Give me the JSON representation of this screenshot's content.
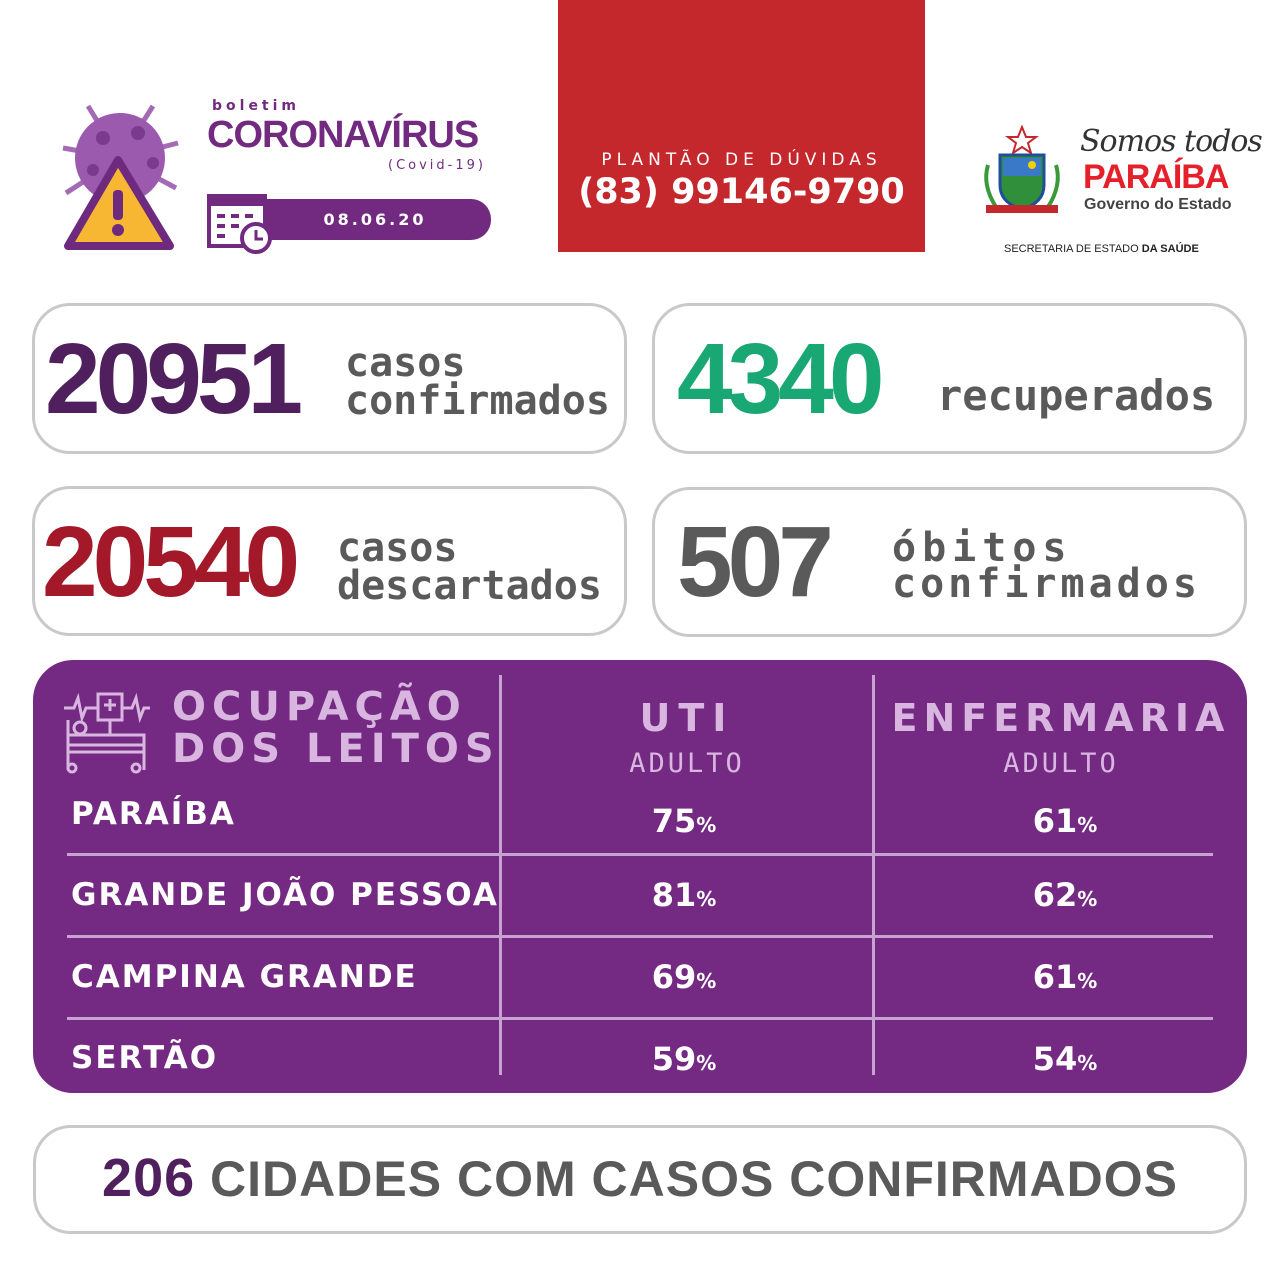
{
  "header": {
    "kicker": "boletim",
    "title": "CORONAVÍRUS",
    "subtitle": "(Covid-19)",
    "date": "08.06.20"
  },
  "hotline": {
    "label": "PLANTÃO DE DÚVIDAS",
    "phone": "(83) 99146-9790",
    "color": "#c4282d"
  },
  "gov": {
    "slogan": "Somos todos",
    "state": "PARAÍBA",
    "gov": "Governo do Estado",
    "secretaria": "SECRETARIA DE ESTADO",
    "secretaria_bold": "DA SAÚDE"
  },
  "stats": [
    {
      "value": "20951",
      "label1": "casos",
      "label2": "confirmados",
      "color": "#4f1f5e"
    },
    {
      "value": "4340",
      "label1": "",
      "label2": "recuperados",
      "color": "#19a874"
    },
    {
      "value": "20540",
      "label1": "casos",
      "label2": "descartados",
      "color": "#a3192a"
    },
    {
      "value": "507",
      "label1": "óbitos",
      "label2": "confirmados",
      "color": "#5a5a5a"
    }
  ],
  "beds": {
    "title1": "OCUPAÇÃO",
    "title2": "DOS LEITOS",
    "col1": "UTI",
    "col1_sub": "ADULTO",
    "col2": "ENFERMARIA",
    "col2_sub": "ADULTO",
    "unit": "%",
    "rows": [
      {
        "region": "PARAÍBA",
        "uti": "75",
        "enf": "61"
      },
      {
        "region": "GRANDE JOÃO PESSOA",
        "uti": "81",
        "enf": "62"
      },
      {
        "region": "CAMPINA GRANDE",
        "uti": "69",
        "enf": "61"
      },
      {
        "region": "SERTÃO",
        "uti": "59",
        "enf": "54"
      }
    ],
    "bg": "#742a82"
  },
  "cities": {
    "count": "206",
    "label": "CIDADES COM CASOS CONFIRMADOS"
  }
}
